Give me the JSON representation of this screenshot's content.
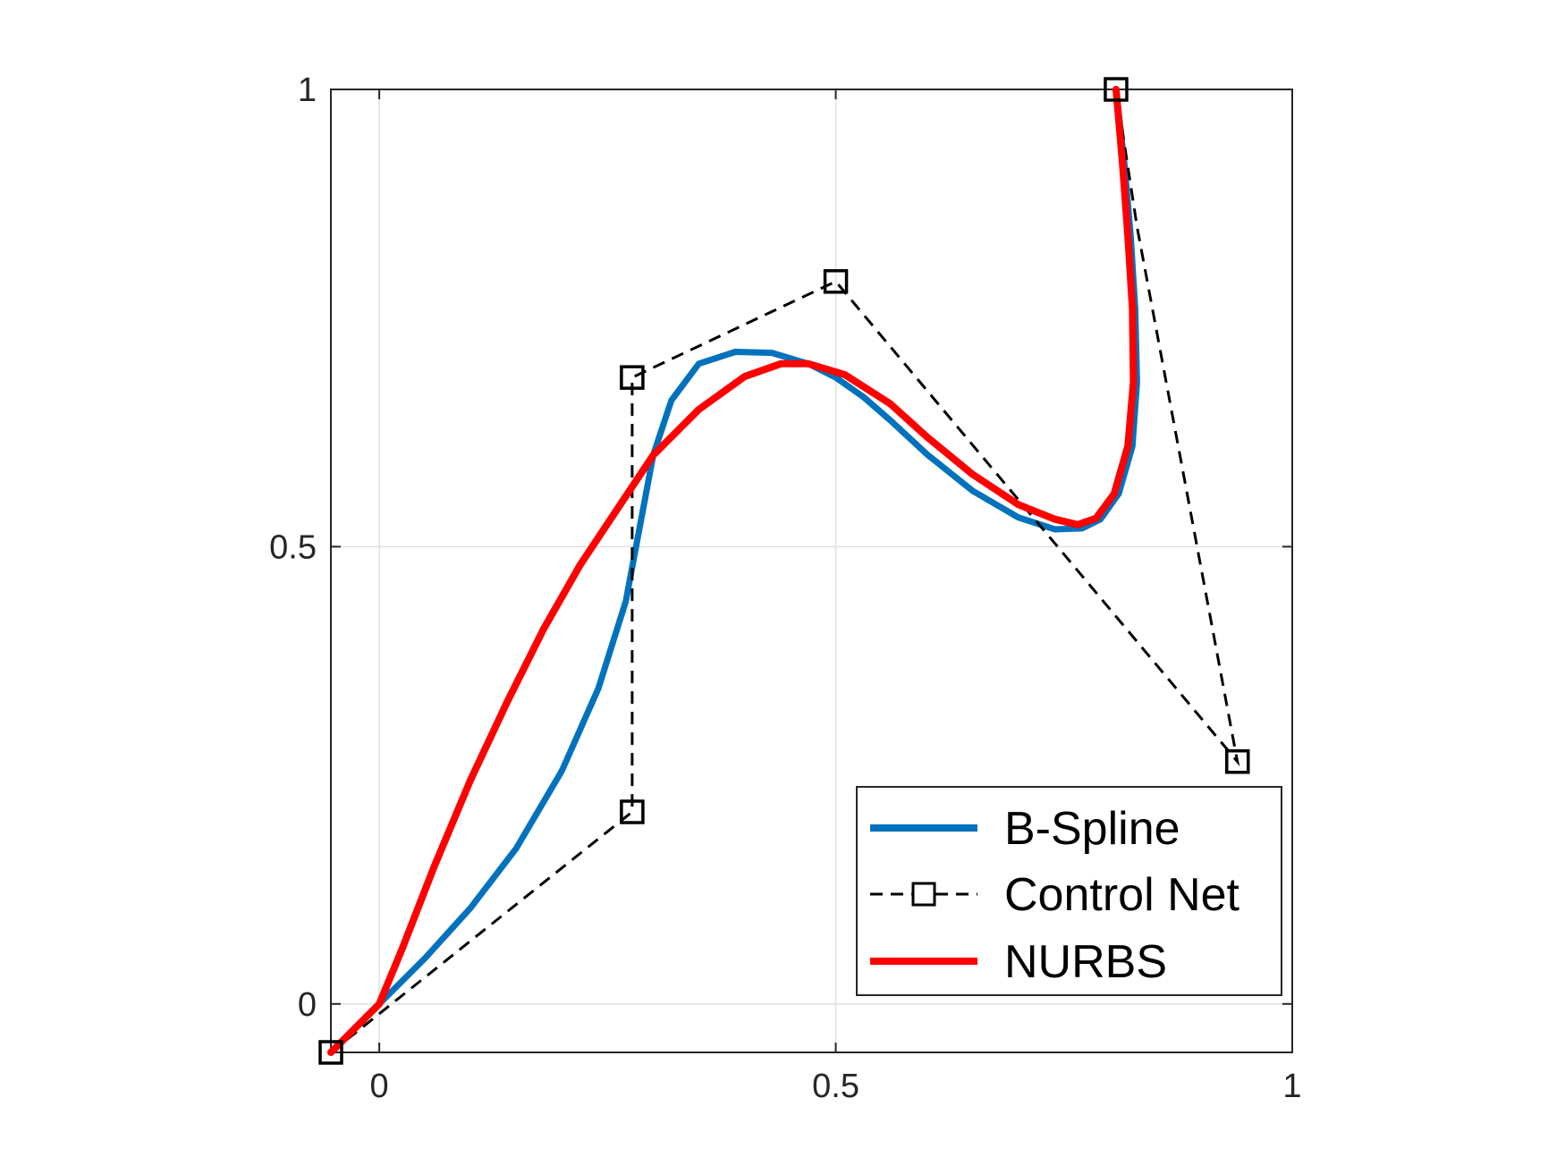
{
  "chart_data": {
    "type": "line",
    "title": "",
    "xlabel": "",
    "ylabel": "",
    "xlim": [
      -0.053,
      1.0
    ],
    "ylim": [
      -0.053,
      1.0
    ],
    "x_ticks": [
      0,
      0.5,
      1
    ],
    "y_ticks": [
      0,
      0.5,
      1
    ],
    "x_tick_labels": [
      "0",
      "0.5",
      "1"
    ],
    "y_tick_labels": [
      "0",
      "0.5",
      "1"
    ],
    "grid": true,
    "legend_position": "bottom-right",
    "legend": [
      "B-Spline",
      "Control Net",
      "NURBS"
    ],
    "colors": {
      "bspline": "#0072BD",
      "control_net": "#000000",
      "nurbs": "#FF0000",
      "axes": "#262626",
      "grid": "#DFDFDF"
    },
    "series": [
      {
        "name": "B-Spline",
        "style": "solid",
        "points": [
          [
            -0.053,
            -0.053
          ],
          [
            0.0,
            0.0
          ],
          [
            0.05,
            0.05
          ],
          [
            0.1,
            0.105
          ],
          [
            0.15,
            0.17
          ],
          [
            0.2,
            0.255
          ],
          [
            0.24,
            0.345
          ],
          [
            0.27,
            0.44
          ],
          [
            0.285,
            0.52
          ],
          [
            0.3,
            0.6
          ],
          [
            0.32,
            0.66
          ],
          [
            0.35,
            0.7
          ],
          [
            0.39,
            0.713
          ],
          [
            0.43,
            0.712
          ],
          [
            0.47,
            0.7
          ],
          [
            0.5,
            0.685
          ],
          [
            0.53,
            0.664
          ],
          [
            0.56,
            0.638
          ],
          [
            0.6,
            0.601
          ],
          [
            0.65,
            0.561
          ],
          [
            0.7,
            0.532
          ],
          [
            0.74,
            0.519
          ],
          [
            0.77,
            0.52
          ],
          [
            0.79,
            0.53
          ],
          [
            0.81,
            0.558
          ],
          [
            0.825,
            0.61
          ],
          [
            0.83,
            0.68
          ],
          [
            0.828,
            0.76
          ],
          [
            0.823,
            0.84
          ],
          [
            0.816,
            0.92
          ],
          [
            0.807,
            1.0
          ]
        ]
      },
      {
        "name": "Control Net",
        "style": "dashed",
        "marker": "square",
        "points": [
          [
            -0.053,
            -0.053
          ],
          [
            0.277,
            0.21
          ],
          [
            0.277,
            0.685
          ],
          [
            0.5,
            0.79
          ],
          [
            0.94,
            0.265
          ],
          [
            0.83,
            0.85
          ],
          [
            0.83,
            0.85
          ],
          [
            0.807,
            1.0
          ]
        ]
      },
      {
        "name": "NURBS",
        "style": "solid",
        "points": [
          [
            -0.053,
            -0.053
          ],
          [
            0.0,
            0.0
          ],
          [
            0.025,
            0.06
          ],
          [
            0.06,
            0.15
          ],
          [
            0.1,
            0.245
          ],
          [
            0.14,
            0.33
          ],
          [
            0.18,
            0.41
          ],
          [
            0.22,
            0.48
          ],
          [
            0.26,
            0.54
          ],
          [
            0.3,
            0.6
          ],
          [
            0.35,
            0.65
          ],
          [
            0.4,
            0.686
          ],
          [
            0.44,
            0.7
          ],
          [
            0.47,
            0.7
          ],
          [
            0.51,
            0.688
          ],
          [
            0.56,
            0.656
          ],
          [
            0.6,
            0.62
          ],
          [
            0.65,
            0.579
          ],
          [
            0.7,
            0.546
          ],
          [
            0.74,
            0.53
          ],
          [
            0.765,
            0.524
          ],
          [
            0.785,
            0.531
          ],
          [
            0.805,
            0.558
          ],
          [
            0.82,
            0.61
          ],
          [
            0.826,
            0.68
          ],
          [
            0.825,
            0.76
          ],
          [
            0.82,
            0.84
          ],
          [
            0.814,
            0.92
          ],
          [
            0.807,
            1.0
          ]
        ]
      }
    ]
  }
}
